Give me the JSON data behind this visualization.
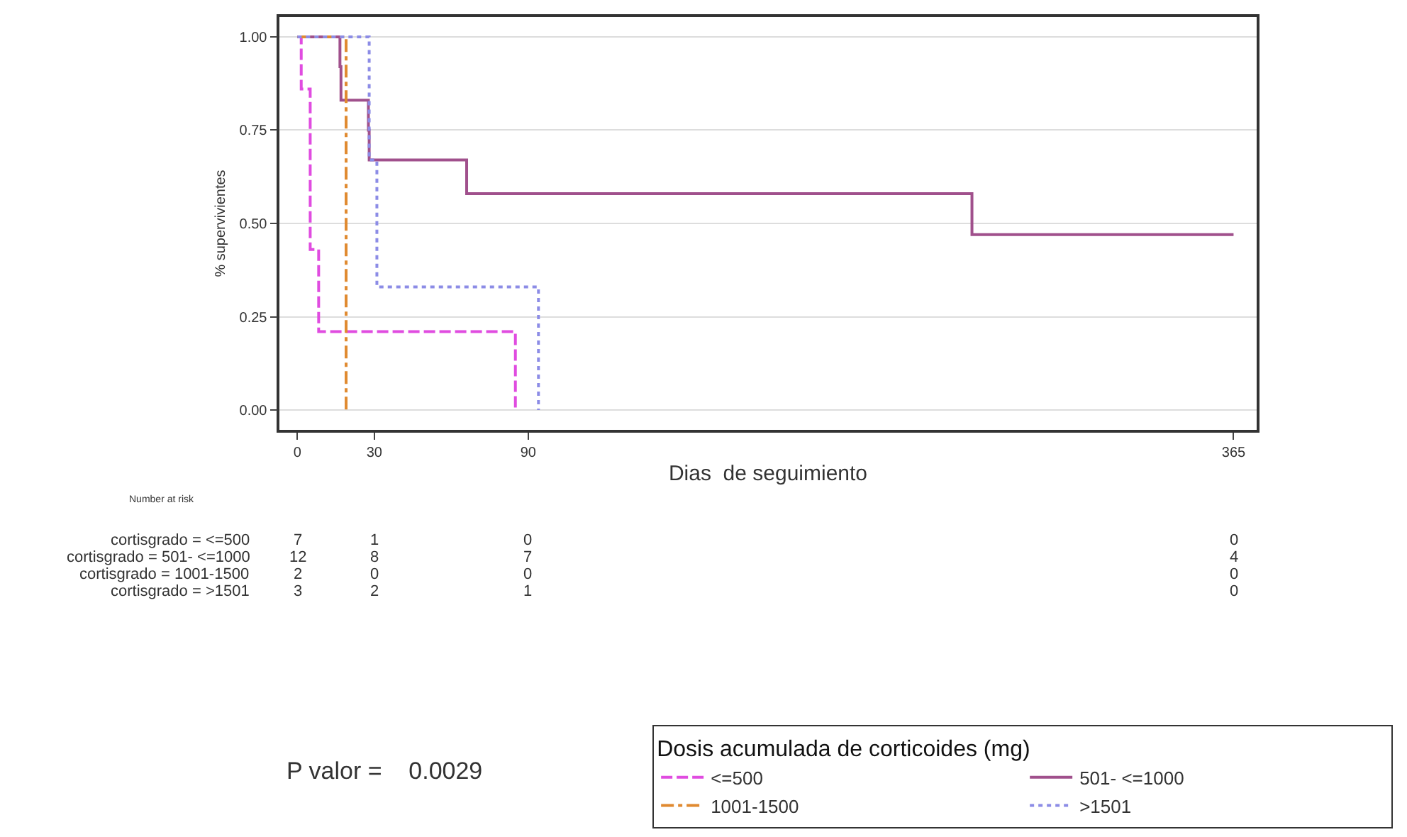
{
  "chart_data": {
    "type": "step",
    "xlabel": "Dias  de seguimiento",
    "ylabel": "% supervivientes",
    "legend_title": "Dosis acumulada de corticoides (mg)",
    "xlim": [
      -7,
      374
    ],
    "xticks": [
      0,
      30,
      90,
      365
    ],
    "ylim": [
      -0.053,
      1.053
    ],
    "yticks": [
      {
        "value": 0,
        "label": "0.00"
      },
      {
        "value": 0.25,
        "label": "0.25"
      },
      {
        "value": 0.5,
        "label": "0.50"
      },
      {
        "value": 0.75,
        "label": "0.75"
      },
      {
        "value": 1,
        "label": "1.00"
      }
    ],
    "grid": "y",
    "legend": "bottom right",
    "marker": "none",
    "series": [
      {
        "name": "<=500",
        "color": "#e04ce0",
        "line_style": "dashed",
        "x": [
          0,
          1.5,
          5,
          8.3,
          85
        ],
        "values": [
          1,
          0.86,
          0.43,
          0.21,
          0
        ]
      },
      {
        "name": "501- <=1000",
        "color": "#a0508c",
        "line_style": "solid",
        "x": [
          0,
          16.6,
          17,
          27.7,
          28,
          66,
          263,
          365
        ],
        "values": [
          1,
          0.92,
          0.83,
          0.75,
          0.67,
          0.58,
          0.47,
          0.47
        ]
      },
      {
        "name": "1001-1500",
        "color": "#e08a30",
        "line_style": "dashdot",
        "x": [
          0,
          19
        ],
        "values": [
          1,
          0
        ]
      },
      {
        "name": ">1501",
        "color": "#8c8ce6",
        "line_style": "dotted",
        "x": [
          0,
          28,
          31,
          94
        ],
        "values": [
          1,
          0.67,
          0.33,
          0
        ]
      }
    ],
    "annotations": [
      "Number at risk",
      "cortisgrado = <=500",
      "cortisgrado = 501- <=1000",
      "cortisgrado = 1001-1500",
      "cortisgrado = >1501",
      "7",
      "1",
      "0",
      "0",
      "12",
      "8",
      "7",
      "4",
      "2",
      "0",
      "0",
      "0",
      "3",
      "2",
      "1",
      "0",
      "P valor =    0.0029"
    ]
  }
}
